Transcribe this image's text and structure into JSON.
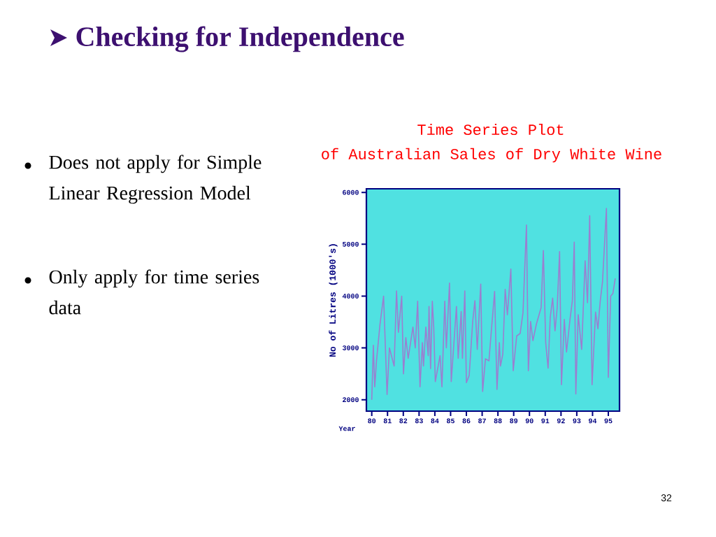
{
  "chart_data": {
    "type": "line",
    "title": "Time Series Plot",
    "subtitle": "of Australian Sales of Dry White Wine",
    "xlabel": "Year",
    "ylabel": "No of Litres (1000's)",
    "x": [
      80.0,
      80.1,
      80.19,
      80.3,
      80.52,
      80.75,
      80.97,
      81.12,
      81.42,
      81.57,
      81.69,
      81.9,
      82.01,
      82.16,
      82.31,
      82.61,
      82.76,
      82.91,
      83.06,
      83.21,
      83.28,
      83.43,
      83.58,
      83.63,
      83.73,
      83.84,
      83.93,
      84.03,
      84.33,
      84.45,
      84.63,
      84.73,
      84.93,
      85.0,
      85.04,
      85.37,
      85.48,
      85.67,
      85.75,
      85.9,
      86.0,
      86.18,
      86.4,
      86.54,
      86.69,
      86.91,
      87.03,
      87.21,
      87.43,
      87.57,
      87.79,
      87.94,
      88.09,
      88.16,
      88.31,
      88.46,
      88.6,
      88.82,
      88.97,
      89.19,
      89.41,
      89.59,
      89.81,
      89.93,
      90.07,
      90.22,
      90.44,
      90.74,
      90.88,
      91.03,
      91.18,
      91.32,
      91.47,
      91.62,
      91.76,
      91.91,
      92.03,
      92.21,
      92.35,
      92.57,
      92.72,
      92.84,
      92.94,
      93.09,
      93.31,
      93.53,
      93.68,
      93.82,
      93.97,
      94.19,
      94.34,
      94.49,
      94.63,
      94.88,
      95.0,
      95.15,
      95.29,
      95.44
    ],
    "series": [
      {
        "color": "#9a7fd0",
        "values": [
          2000,
          3050,
          2250,
          2750,
          3450,
          4000,
          2100,
          3000,
          2650,
          4100,
          3300,
          4000,
          2500,
          3200,
          2800,
          3400,
          3000,
          3900,
          2250,
          3100,
          2650,
          3400,
          2850,
          3800,
          2600,
          3900,
          3400,
          2350,
          2850,
          2250,
          3900,
          3000,
          4250,
          3200,
          2350,
          3800,
          2800,
          3700,
          2800,
          4100,
          2330,
          2470,
          3510,
          3910,
          2970,
          4230,
          2160,
          2790,
          2750,
          3280,
          4090,
          2200,
          3100,
          2650,
          2880,
          4130,
          3640,
          4520,
          2560,
          3230,
          3280,
          3680,
          5370,
          2560,
          3510,
          3140,
          3460,
          3780,
          4880,
          3100,
          2610,
          3600,
          3960,
          3330,
          3780,
          4860,
          2290,
          3550,
          2920,
          3550,
          3910,
          5040,
          2110,
          3640,
          2970,
          4680,
          3870,
          5550,
          2290,
          3690,
          3370,
          3910,
          4270,
          5690,
          2430,
          4000,
          4050,
          4340
        ]
      }
    ],
    "xlim": [
      79.66,
      95.71
    ],
    "ylim": [
      1780,
      6070
    ],
    "xticks": [
      80,
      81,
      82,
      83,
      84,
      85,
      86,
      87,
      88,
      89,
      90,
      91,
      92,
      93,
      94,
      95
    ],
    "yticks": [
      2000,
      3000,
      4000,
      5000,
      6000
    ],
    "grid": false,
    "marker": "none",
    "line_style": "solid",
    "annotations": [
      "Checking for Independence",
      "Does not apply for Simple Linear Regression Model",
      "Only apply for time series data",
      "32"
    ]
  }
}
